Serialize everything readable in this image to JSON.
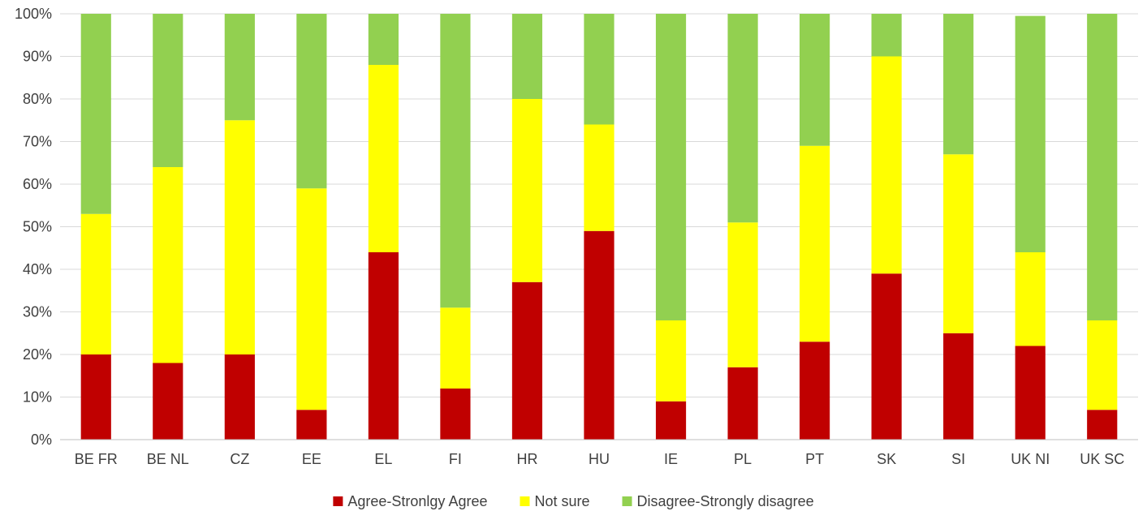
{
  "chart_data": {
    "type": "bar",
    "stacked": true,
    "title": "",
    "xlabel": "",
    "ylabel": "",
    "ylim": [
      0,
      100
    ],
    "y_ticks": [
      "0%",
      "10%",
      "20%",
      "30%",
      "40%",
      "50%",
      "60%",
      "70%",
      "80%",
      "90%",
      "100%"
    ],
    "grid": true,
    "legend_position": "bottom",
    "categories": [
      "BE FR",
      "BE NL",
      "CZ",
      "EE",
      "EL",
      "FI",
      "HR",
      "HU",
      "IE",
      "PL",
      "PT",
      "SK",
      "SI",
      "UK NI",
      "UK SC"
    ],
    "series": [
      {
        "name": "Agree-Stronlgy Agree",
        "color": "#c00000",
        "values": [
          20,
          18,
          20,
          7,
          44,
          12,
          37,
          49,
          9,
          17,
          23,
          39,
          25,
          22,
          7
        ]
      },
      {
        "name": "Not sure",
        "color": "#ffff00",
        "values": [
          33,
          46,
          55,
          52,
          44,
          19,
          43,
          25,
          19,
          34,
          46,
          51,
          42,
          22,
          21
        ]
      },
      {
        "name": "Disagree-Strongly disagree",
        "color": "#92d050",
        "values": [
          47,
          36,
          25,
          41,
          12,
          69,
          20,
          26,
          72,
          49,
          31,
          10,
          33,
          55.5,
          72
        ]
      }
    ]
  }
}
